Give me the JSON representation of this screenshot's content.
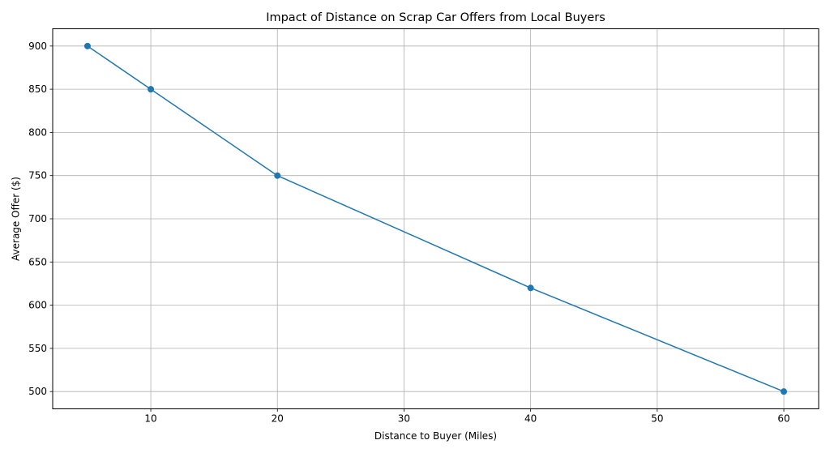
{
  "chart_data": {
    "type": "line",
    "title": "Impact of Distance on Scrap Car Offers from Local Buyers",
    "xlabel": "Distance to Buyer (Miles)",
    "ylabel": "Average Offer ($)",
    "x": [
      5,
      10,
      20,
      40,
      60
    ],
    "series": [
      {
        "values": [
          900,
          850,
          750,
          620,
          500
        ]
      }
    ],
    "xlim": [
      2.25,
      62.75
    ],
    "ylim": [
      480,
      920
    ],
    "xticks": [
      10,
      20,
      30,
      40,
      50,
      60
    ],
    "yticks": [
      500,
      550,
      600,
      650,
      700,
      750,
      800,
      850,
      900
    ],
    "grid": true,
    "colors": {
      "line": "#1f77b4",
      "grid": "#b0b0b0",
      "axes": "#000000"
    }
  }
}
